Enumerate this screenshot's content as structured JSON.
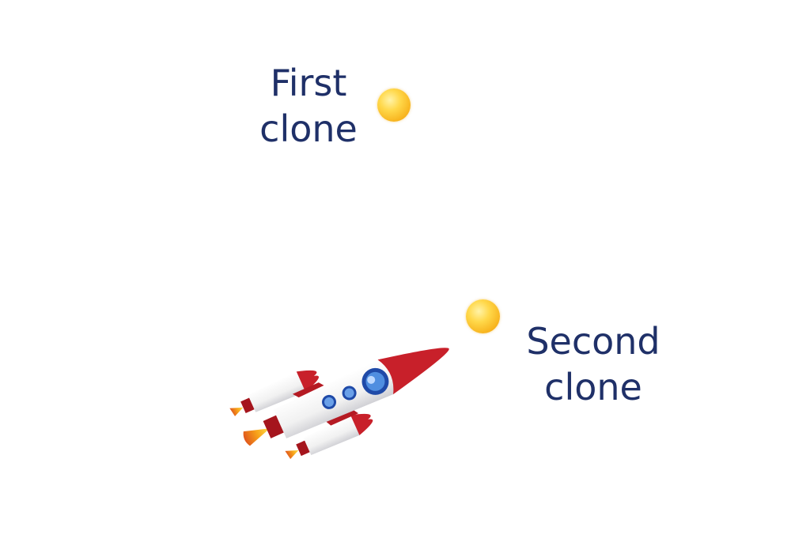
{
  "labels": {
    "first": [
      "First",
      "clone"
    ],
    "second": [
      "Second",
      "clone"
    ]
  },
  "colors": {
    "text": "#1f3068",
    "ball": "#f7b21c",
    "rocket_body": "#f4f4f4",
    "rocket_red": "#c8202a",
    "window": "#3a6fc8",
    "flame": "#f59a1b"
  },
  "icons": {
    "projectile_first": "yellow-ball-icon",
    "projectile_second": "yellow-ball-icon",
    "rocket": "rocket-icon"
  }
}
